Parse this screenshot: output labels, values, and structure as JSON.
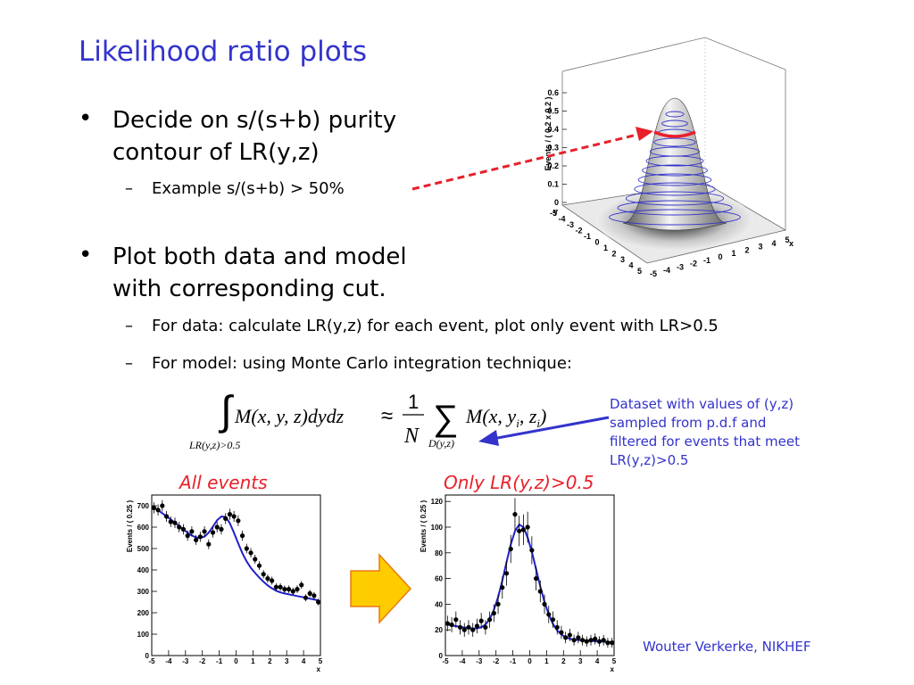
{
  "slide": {
    "title": "Likelihood ratio plots",
    "bullets": [
      {
        "text": [
          "Decide on s/(s+b) purity",
          "contour of LR(y,z)"
        ],
        "subs": [
          "Example s/(s+b) > 50%"
        ]
      },
      {
        "text": [
          "Plot both data and model",
          "with corresponding cut."
        ],
        "subs": [
          "For data: calculate LR(y,z) for each event, plot only event with LR>0.5",
          "For model: using Monte Carlo integration technique:"
        ]
      }
    ],
    "annotation": [
      "Dataset with values of (y,z)",
      "sampled from p.d.f and",
      "filtered for events that meet",
      "LR(y,z)>0.5"
    ],
    "label_all": "All events",
    "label_cut": "Only LR(y,z)>0.5",
    "footer": "Wouter Verkerke, NIKHEF",
    "formula": {
      "lhs": "M(x, y, z)dydz",
      "approx": "≈",
      "frac_num": "1",
      "frac_den": "N",
      "sum": "∑",
      "rhs": "M(x, y",
      "rhs_i1": "i",
      "rhs_mid": ", z",
      "rhs_i2": "i",
      "rhs_end": ")",
      "lower_int": "LR(y,z)>0.5",
      "lower_sum": "D(y,z)"
    },
    "colors": {
      "title": "#3333cc",
      "arrow_red": "#e8202a",
      "arrow_blue": "#3333cc",
      "curve": "#2020cc",
      "big_arrow": "#ffcc00"
    }
  },
  "chart_data": [
    {
      "type": "surface3d",
      "zlabel": "Events / ( 0.2 x 0.2 )",
      "z_ticks": [
        "0",
        "0.1",
        "0.2",
        "0.3",
        "0.4",
        "0.5",
        "0.6"
      ],
      "y_ticks": [
        "-5",
        "-4",
        "-3",
        "-2",
        "-1",
        "0",
        "1",
        "2",
        "3",
        "4",
        "5"
      ],
      "x_ticks": [
        "5",
        "4",
        "3",
        "2",
        "1",
        "0",
        "-1",
        "-2",
        "-3",
        "-4",
        "-5"
      ],
      "xlabel": "x",
      "ylabel": "y"
    },
    {
      "type": "scatter",
      "title": "All events",
      "ylabel": "Events / ( 0.25 )",
      "xlabel": "x",
      "xlim": [
        -5,
        5
      ],
      "ylim": [
        0,
        750
      ],
      "y_ticks": [
        0,
        100,
        200,
        300,
        400,
        500,
        600,
        700
      ],
      "x_ticks": [
        -5,
        -4,
        -3,
        -2,
        -1,
        0,
        1,
        2,
        3,
        4,
        5
      ],
      "x": [
        -4.875,
        -4.625,
        -4.375,
        -4.125,
        -3.875,
        -3.625,
        -3.375,
        -3.125,
        -2.875,
        -2.625,
        -2.375,
        -2.125,
        -1.875,
        -1.625,
        -1.375,
        -1.125,
        -0.875,
        -0.625,
        -0.375,
        -0.125,
        0.125,
        0.375,
        0.625,
        0.875,
        1.125,
        1.375,
        1.625,
        1.875,
        2.125,
        2.375,
        2.625,
        2.875,
        3.125,
        3.375,
        3.625,
        3.875,
        4.125,
        4.375,
        4.625,
        4.875
      ],
      "values": [
        690,
        680,
        700,
        650,
        625,
        620,
        600,
        590,
        560,
        580,
        540,
        555,
        580,
        520,
        575,
        600,
        590,
        640,
        660,
        650,
        630,
        560,
        500,
        480,
        450,
        420,
        380,
        360,
        350,
        320,
        320,
        310,
        310,
        300,
        310,
        330,
        270,
        290,
        280,
        250
      ],
      "model": [
        692,
        679,
        665,
        651,
        636,
        621,
        605,
        589,
        574,
        561,
        552,
        549,
        556,
        574,
        602,
        632,
        650,
        647,
        619,
        574,
        524,
        478,
        440,
        410,
        386,
        364,
        345,
        328,
        314,
        303,
        295,
        290,
        286,
        282,
        278,
        274,
        270,
        266,
        262,
        258
      ]
    },
    {
      "type": "scatter",
      "title": "Only LR(y,z)>0.5",
      "ylabel": "Events / ( 0.25 )",
      "xlabel": "x",
      "xlim": [
        -5,
        5
      ],
      "ylim": [
        0,
        125
      ],
      "y_ticks": [
        0,
        20,
        40,
        60,
        80,
        100,
        120
      ],
      "x_ticks": [
        -5,
        -4,
        -3,
        -2,
        -1,
        0,
        1,
        2,
        3,
        4,
        5
      ],
      "x": [
        -4.875,
        -4.625,
        -4.375,
        -4.125,
        -3.875,
        -3.625,
        -3.375,
        -3.125,
        -2.875,
        -2.625,
        -2.375,
        -2.125,
        -1.875,
        -1.625,
        -1.375,
        -1.125,
        -0.875,
        -0.625,
        -0.375,
        -0.125,
        0.125,
        0.375,
        0.625,
        0.875,
        1.125,
        1.375,
        1.625,
        1.875,
        2.125,
        2.375,
        2.625,
        2.875,
        3.125,
        3.375,
        3.625,
        3.875,
        4.125,
        4.375,
        4.625,
        4.875
      ],
      "values": [
        25,
        24,
        28,
        22,
        20,
        22,
        20,
        23,
        27,
        22,
        28,
        33,
        40,
        53,
        64,
        83,
        110,
        97,
        98,
        100,
        82,
        60,
        50,
        40,
        32,
        28,
        22,
        18,
        14,
        16,
        12,
        14,
        12,
        11,
        12,
        13,
        11,
        12,
        10,
        10
      ],
      "model": [
        24,
        23.4,
        22.9,
        22.3,
        21.8,
        21.4,
        21.1,
        21.2,
        22.1,
        24.2,
        28.4,
        35.5,
        45.6,
        58.5,
        72.8,
        86.4,
        97,
        102,
        100,
        92,
        80.7,
        67.3,
        53.8,
        41.8,
        32,
        24.6,
        19.6,
        16.3,
        14.3,
        13.1,
        12.5,
        12.1,
        11.9,
        11.6,
        11.4,
        11.2,
        11.0,
        10.8,
        10.6,
        10.4
      ]
    }
  ]
}
